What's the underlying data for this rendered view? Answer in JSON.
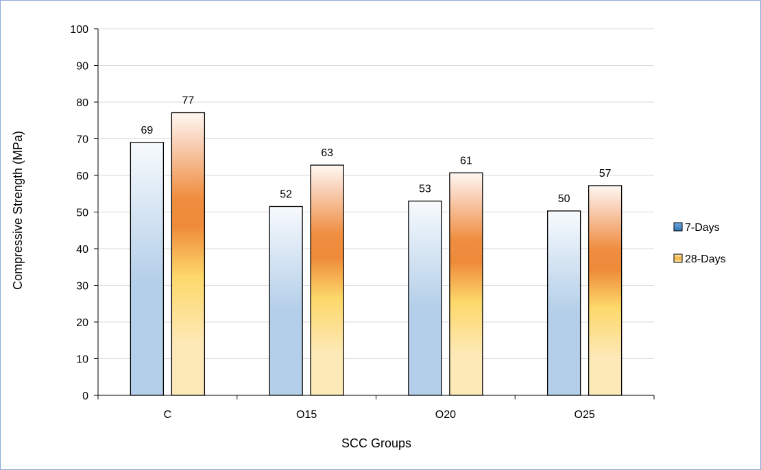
{
  "colors": {
    "frame_border": "#8ea9db",
    "gridline": "#d9d9d9",
    "axis": "#000000",
    "series_7_days": "#5b9bd5",
    "series_28_days": "#ffc000",
    "series_28_days_band": "#ed7d31"
  },
  "chart_data": {
    "type": "bar",
    "title": "",
    "xlabel": "SCC Groups",
    "ylabel": "Compressive Strength (MPa)",
    "categories": [
      "C",
      "O15",
      "O20",
      "O25"
    ],
    "ylim": [
      0,
      100
    ],
    "yticks": [
      0,
      10,
      20,
      30,
      40,
      50,
      60,
      70,
      80,
      90,
      100
    ],
    "grid": true,
    "legend_position": "right",
    "series": [
      {
        "name": "7-Days",
        "values": [
          69,
          51.5,
          53,
          50.3
        ],
        "labels": [
          "69",
          "52",
          "53",
          "50"
        ],
        "style": "blue-gradient"
      },
      {
        "name": "28-Days",
        "values": [
          77.1,
          62.8,
          60.7,
          57.2
        ],
        "labels": [
          "77",
          "63",
          "61",
          "57"
        ],
        "style": "orange-gradient"
      }
    ]
  }
}
